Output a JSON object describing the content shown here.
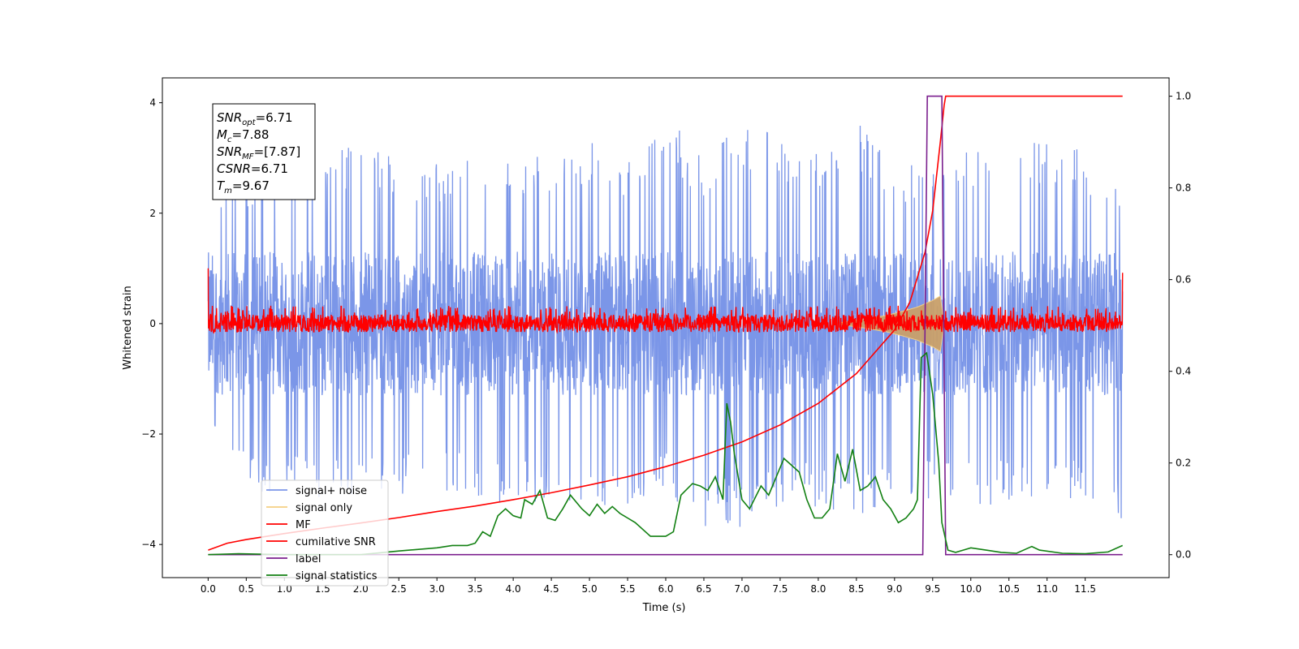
{
  "chart_data": {
    "type": "line",
    "xlabel": "Time (s)",
    "ylabel": "Whitened strain",
    "xlim": [
      -0.6,
      12.6
    ],
    "ylim": [
      -4.6,
      4.45
    ],
    "y2lim": [
      -0.05,
      1.04
    ],
    "xticks": [
      "0.0",
      "0.5",
      "1.0",
      "1.5",
      "2.0",
      "2.5",
      "3.0",
      "3.5",
      "4.0",
      "4.5",
      "5.0",
      "5.5",
      "6.0",
      "6.5",
      "7.0",
      "7.5",
      "8.0",
      "8.5",
      "9.0",
      "9.5",
      "10.0",
      "10.5",
      "11.0",
      "11.5"
    ],
    "yticks": [
      "−4",
      "−2",
      "0",
      "2",
      "4"
    ],
    "y2ticks": [
      "0.0",
      "0.2",
      "0.4",
      "0.6",
      "0.8",
      "1.0"
    ],
    "annotation": {
      "lines": [
        {
          "main": "SNR",
          "sub": "opt",
          "value": "=6.71"
        },
        {
          "main": "M",
          "sub": "c",
          "value": "=7.88"
        },
        {
          "main": "SNR",
          "sub": "MF",
          "value": "=[7.87]"
        },
        {
          "main": "CSNR",
          "sub": "",
          "value": "=6.71"
        },
        {
          "main": "T",
          "sub": "m",
          "value": "=9.67"
        }
      ]
    },
    "legend": {
      "placement": "lower-left",
      "entries": [
        "signal+ noise",
        "signal only",
        "MF",
        "cumilative SNR",
        "label",
        "signal statistics"
      ]
    },
    "colors": {
      "signal_noise": "#7b96e8",
      "signal_only": "#f5cf83",
      "mf": "#ff0000",
      "csnr": "#ff0000",
      "label": "#7b1f8e",
      "stats": "#128012"
    },
    "series": [
      {
        "name": "signal+ noise",
        "axis": "left",
        "description_range": "noise envelope",
        "t_start": 0.0,
        "t_end": 11.99,
        "upper_envelope": [
          [
            0.0,
            2.4
          ],
          [
            0.5,
            2.8
          ],
          [
            1.0,
            3.0
          ],
          [
            1.5,
            3.1
          ],
          [
            2.0,
            3.3
          ],
          [
            2.5,
            3.0
          ],
          [
            3.0,
            2.9
          ],
          [
            3.5,
            3.0
          ],
          [
            4.0,
            3.1
          ],
          [
            4.5,
            3.2
          ],
          [
            5.0,
            3.3
          ],
          [
            5.5,
            3.0
          ],
          [
            6.0,
            3.9
          ],
          [
            6.5,
            3.0
          ],
          [
            7.0,
            3.8
          ],
          [
            7.5,
            3.3
          ],
          [
            8.0,
            3.2
          ],
          [
            8.5,
            3.7
          ],
          [
            9.0,
            2.9
          ],
          [
            9.5,
            3.0
          ],
          [
            10.0,
            3.3
          ],
          [
            10.5,
            3.1
          ],
          [
            11.0,
            3.4
          ],
          [
            11.5,
            3.1
          ],
          [
            11.99,
            2.8
          ]
        ],
        "lower_envelope": [
          [
            0.0,
            -2.1
          ],
          [
            0.5,
            -3.0
          ],
          [
            1.0,
            -3.2
          ],
          [
            1.5,
            -3.2
          ],
          [
            2.0,
            -3.3
          ],
          [
            2.5,
            -3.1
          ],
          [
            3.0,
            -3.0
          ],
          [
            3.5,
            -3.2
          ],
          [
            4.0,
            -3.3
          ],
          [
            4.5,
            -3.2
          ],
          [
            5.0,
            -3.4
          ],
          [
            5.5,
            -3.3
          ],
          [
            6.0,
            -3.0
          ],
          [
            6.5,
            -3.8
          ],
          [
            7.0,
            -3.7
          ],
          [
            7.5,
            -3.3
          ],
          [
            8.0,
            -3.4
          ],
          [
            8.5,
            -3.6
          ],
          [
            9.0,
            -3.1
          ],
          [
            9.5,
            -3.2
          ],
          [
            10.0,
            -3.3
          ],
          [
            10.5,
            -3.3
          ],
          [
            11.0,
            -3.1
          ],
          [
            11.5,
            -3.2
          ],
          [
            11.99,
            -3.7
          ]
        ]
      },
      {
        "name": "signal only",
        "axis": "left",
        "points": [
          [
            8.3,
            0.02
          ],
          [
            8.6,
            0.08
          ],
          [
            8.9,
            0.15
          ],
          [
            9.1,
            0.22
          ],
          [
            9.3,
            0.3
          ],
          [
            9.5,
            0.42
          ],
          [
            9.6,
            0.5
          ],
          [
            9.65,
            0.0
          ],
          [
            9.6,
            -0.5
          ],
          [
            9.5,
            -0.42
          ],
          [
            9.3,
            -0.3
          ],
          [
            9.1,
            -0.22
          ],
          [
            8.9,
            -0.15
          ],
          [
            8.6,
            -0.08
          ],
          [
            8.3,
            -0.02
          ]
        ]
      },
      {
        "name": "MF",
        "axis": "left",
        "baseline": 0.0,
        "upper_envelope": 0.25,
        "lower_envelope": -0.15,
        "t_start": 0.0,
        "t_end": 11.99,
        "edge_values": [
          [
            0.0,
            1.0
          ],
          [
            11.99,
            0.92
          ]
        ]
      },
      {
        "name": "cumilative SNR",
        "axis": "right",
        "points": [
          [
            0.0,
            0.01
          ],
          [
            0.25,
            0.025
          ],
          [
            0.5,
            0.033
          ],
          [
            1.0,
            0.046
          ],
          [
            1.5,
            0.058
          ],
          [
            2.0,
            0.069
          ],
          [
            2.5,
            0.081
          ],
          [
            3.0,
            0.094
          ],
          [
            3.5,
            0.106
          ],
          [
            4.0,
            0.12
          ],
          [
            4.5,
            0.135
          ],
          [
            5.0,
            0.152
          ],
          [
            5.5,
            0.17
          ],
          [
            6.0,
            0.192
          ],
          [
            6.5,
            0.217
          ],
          [
            7.0,
            0.246
          ],
          [
            7.5,
            0.283
          ],
          [
            8.0,
            0.33
          ],
          [
            8.5,
            0.395
          ],
          [
            9.0,
            0.49
          ],
          [
            9.2,
            0.55
          ],
          [
            9.4,
            0.66
          ],
          [
            9.5,
            0.75
          ],
          [
            9.6,
            0.9
          ],
          [
            9.65,
            0.98
          ],
          [
            9.67,
            1.0
          ],
          [
            11.99,
            1.0
          ]
        ]
      },
      {
        "name": "label",
        "axis": "right",
        "points": [
          [
            0.0,
            0.0
          ],
          [
            9.37,
            0.0
          ],
          [
            9.43,
            1.0
          ],
          [
            9.62,
            1.0
          ],
          [
            9.67,
            0.0
          ],
          [
            11.99,
            0.0
          ]
        ]
      },
      {
        "name": "signal statistics",
        "axis": "right",
        "points": [
          [
            0.0,
            0.0
          ],
          [
            0.4,
            0.002
          ],
          [
            1.0,
            0.0
          ],
          [
            2.0,
            0.0
          ],
          [
            2.5,
            0.008
          ],
          [
            3.0,
            0.015
          ],
          [
            3.2,
            0.02
          ],
          [
            3.4,
            0.02
          ],
          [
            3.5,
            0.025
          ],
          [
            3.6,
            0.05
          ],
          [
            3.7,
            0.04
          ],
          [
            3.8,
            0.085
          ],
          [
            3.9,
            0.1
          ],
          [
            4.0,
            0.085
          ],
          [
            4.1,
            0.08
          ],
          [
            4.15,
            0.12
          ],
          [
            4.25,
            0.11
          ],
          [
            4.35,
            0.14
          ],
          [
            4.45,
            0.08
          ],
          [
            4.55,
            0.075
          ],
          [
            4.65,
            0.1
          ],
          [
            4.75,
            0.13
          ],
          [
            4.9,
            0.1
          ],
          [
            5.0,
            0.085
          ],
          [
            5.1,
            0.11
          ],
          [
            5.2,
            0.09
          ],
          [
            5.3,
            0.105
          ],
          [
            5.4,
            0.09
          ],
          [
            5.5,
            0.08
          ],
          [
            5.6,
            0.07
          ],
          [
            5.8,
            0.04
          ],
          [
            6.0,
            0.04
          ],
          [
            6.1,
            0.05
          ],
          [
            6.2,
            0.13
          ],
          [
            6.35,
            0.155
          ],
          [
            6.45,
            0.15
          ],
          [
            6.55,
            0.14
          ],
          [
            6.65,
            0.17
          ],
          [
            6.75,
            0.12
          ],
          [
            6.8,
            0.33
          ],
          [
            6.85,
            0.29
          ],
          [
            6.9,
            0.22
          ],
          [
            7.0,
            0.12
          ],
          [
            7.1,
            0.1
          ],
          [
            7.25,
            0.15
          ],
          [
            7.35,
            0.13
          ],
          [
            7.45,
            0.17
          ],
          [
            7.55,
            0.21
          ],
          [
            7.65,
            0.195
          ],
          [
            7.75,
            0.18
          ],
          [
            7.85,
            0.12
          ],
          [
            7.95,
            0.08
          ],
          [
            8.05,
            0.08
          ],
          [
            8.15,
            0.1
          ],
          [
            8.25,
            0.22
          ],
          [
            8.35,
            0.16
          ],
          [
            8.45,
            0.23
          ],
          [
            8.55,
            0.14
          ],
          [
            8.65,
            0.15
          ],
          [
            8.75,
            0.17
          ],
          [
            8.85,
            0.12
          ],
          [
            8.95,
            0.1
          ],
          [
            9.05,
            0.07
          ],
          [
            9.15,
            0.08
          ],
          [
            9.25,
            0.1
          ],
          [
            9.3,
            0.12
          ],
          [
            9.35,
            0.43
          ],
          [
            9.42,
            0.44
          ],
          [
            9.5,
            0.35
          ],
          [
            9.58,
            0.2
          ],
          [
            9.62,
            0.07
          ],
          [
            9.7,
            0.01
          ],
          [
            9.8,
            0.005
          ],
          [
            9.9,
            0.01
          ],
          [
            10.0,
            0.015
          ],
          [
            10.2,
            0.01
          ],
          [
            10.4,
            0.005
          ],
          [
            10.6,
            0.003
          ],
          [
            10.8,
            0.018
          ],
          [
            10.9,
            0.01
          ],
          [
            11.2,
            0.003
          ],
          [
            11.5,
            0.002
          ],
          [
            11.8,
            0.006
          ],
          [
            11.99,
            0.02
          ]
        ]
      }
    ]
  }
}
